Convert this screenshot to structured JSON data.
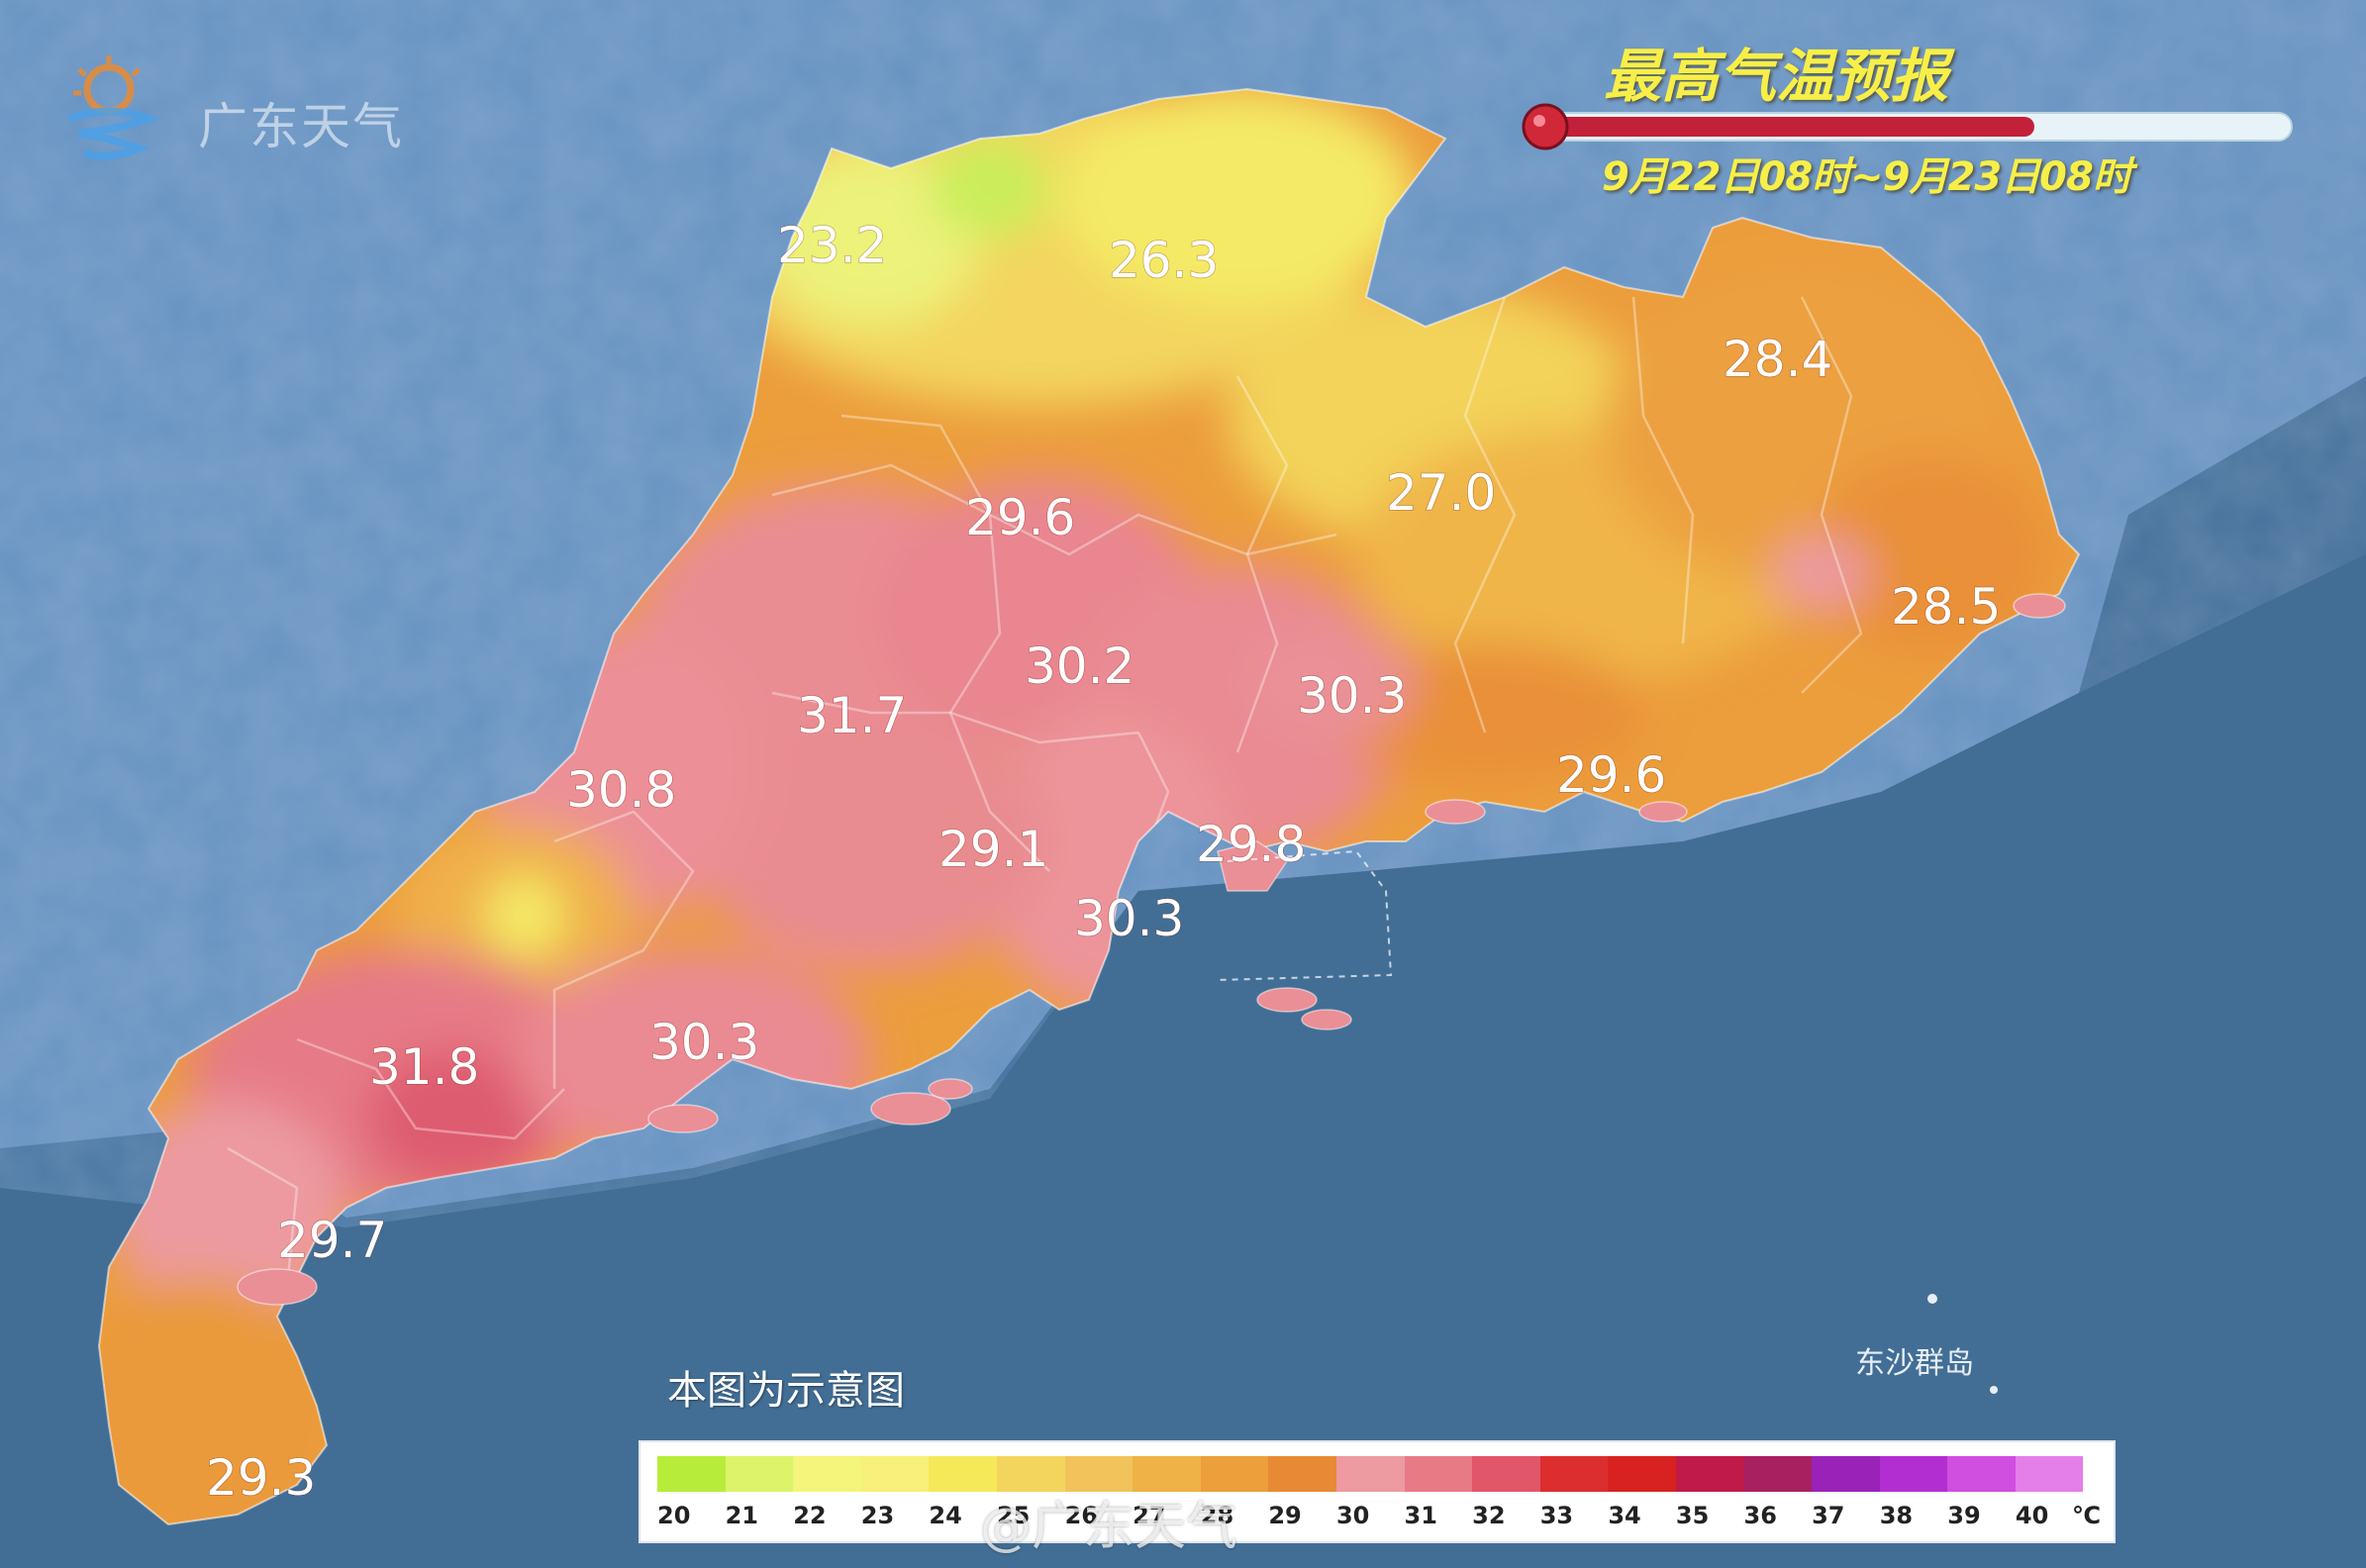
{
  "header": {
    "logo_text": "广东天气",
    "title": "最高气温预报",
    "date_range": "9月22日08时~9月23日08时"
  },
  "map": {
    "note": "本图为示意图",
    "dongsha_label": "东沙群岛",
    "temperature_labels": [
      "23.2",
      "26.3",
      "28.4",
      "29.6",
      "27.0",
      "28.5",
      "30.2",
      "31.7",
      "30.3",
      "30.8",
      "29.6",
      "29.1",
      "29.8",
      "30.3",
      "31.8",
      "30.3",
      "29.7",
      "29.3"
    ]
  },
  "legend": {
    "ticks": [
      "20",
      "21",
      "22",
      "23",
      "24",
      "25",
      "26",
      "27",
      "28",
      "29",
      "30",
      "31",
      "32",
      "33",
      "34",
      "35",
      "36",
      "37",
      "38",
      "39",
      "40"
    ],
    "unit": "℃",
    "colors": [
      "#b8ec3a",
      "#dcf36a",
      "#f4f57a",
      "#f7f07a",
      "#f5e95a",
      "#f3d55e",
      "#f2c35a",
      "#efb246",
      "#ec9f3a",
      "#e88a34",
      "#ed9aa0",
      "#e87a86",
      "#e2566a",
      "#dc2e2e",
      "#d82222",
      "#c01a48",
      "#a82060",
      "#9a22b8",
      "#b22ed0",
      "#d04ee0",
      "#e47ee8"
    ]
  },
  "watermark": "@广东天气"
}
